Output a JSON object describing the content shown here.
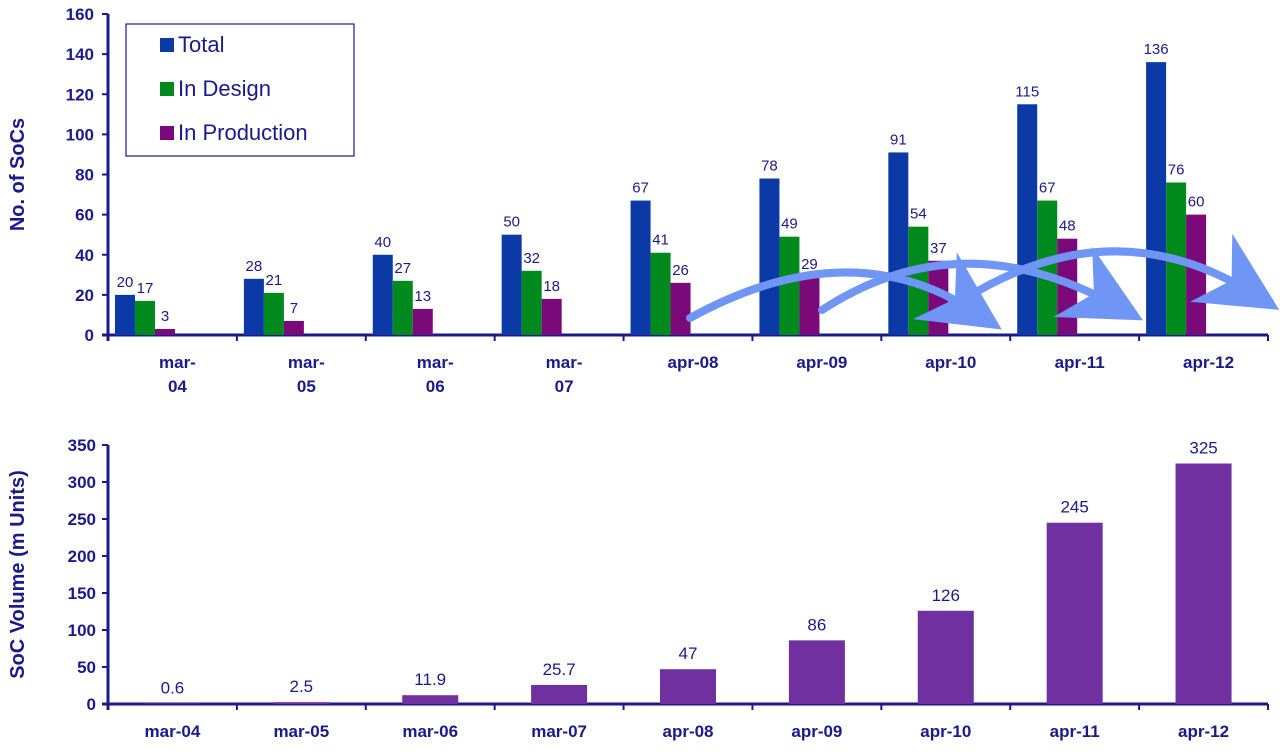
{
  "chart_data": [
    {
      "type": "bar",
      "title": "",
      "xlabel": "",
      "ylabel": "No. of SoCs",
      "ylim": [
        0,
        160
      ],
      "yticks": [
        0,
        20,
        40,
        60,
        80,
        100,
        120,
        140,
        160
      ],
      "categories": [
        "mar-\n04",
        "mar-\n05",
        "mar-\n06",
        "mar-\n07",
        "apr-08",
        "apr-09",
        "apr-10",
        "apr-11",
        "apr-12"
      ],
      "series": [
        {
          "name": "Total",
          "color": "#0b3aa6",
          "values": [
            20,
            28,
            40,
            50,
            67,
            78,
            91,
            115,
            136
          ]
        },
        {
          "name": "In Design",
          "color": "#008a1e",
          "values": [
            17,
            21,
            27,
            32,
            41,
            49,
            54,
            67,
            76
          ]
        },
        {
          "name": "In Production",
          "color": "#7a0a7a",
          "values": [
            3,
            7,
            13,
            18,
            26,
            29,
            37,
            48,
            60
          ]
        }
      ],
      "legend_position": "top-left",
      "grid": false,
      "annotations": "three curved arrows from apr-08 to apr-10, apr-09 to apr-11, apr-10 to apr-12"
    },
    {
      "type": "bar",
      "title": "",
      "xlabel": "",
      "ylabel": "SoC Volume (m Units)",
      "ylim": [
        0,
        350
      ],
      "yticks": [
        0,
        50,
        100,
        150,
        200,
        250,
        300,
        350
      ],
      "categories": [
        "mar-04",
        "mar-05",
        "mar-06",
        "mar-07",
        "apr-08",
        "apr-09",
        "apr-10",
        "apr-11",
        "apr-12"
      ],
      "series": [
        {
          "color": "#7030a0",
          "values": [
            0.6,
            2.5,
            11.9,
            25.7,
            47,
            86,
            126,
            245,
            325
          ],
          "labels": [
            "0.6",
            "2.5",
            "11.9",
            "25.7",
            "47",
            "86",
            "126",
            "245",
            "325"
          ]
        }
      ],
      "grid": false
    }
  ],
  "arrow_color": "#6f95f5"
}
